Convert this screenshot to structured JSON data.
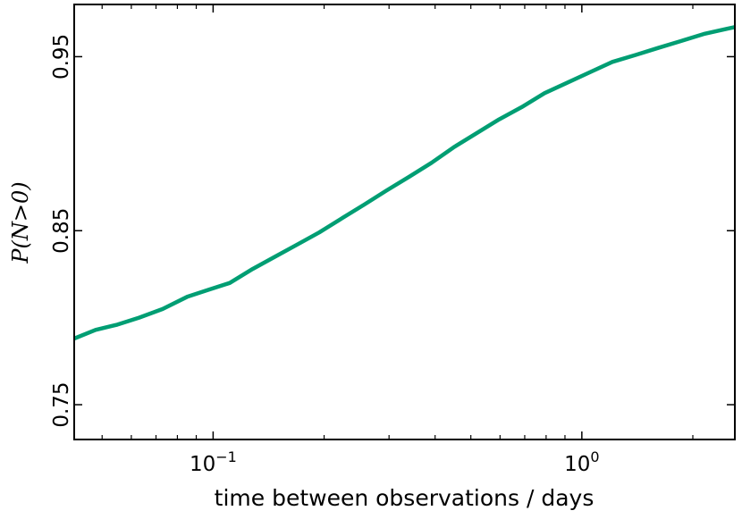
{
  "chart_data": {
    "type": "line",
    "title": "",
    "xlabel": "time between observations / days",
    "ylabel": "P(N>0)",
    "xscale": "log",
    "xlim": [
      0.042,
      2.6
    ],
    "ylim": [
      0.73,
      0.98
    ],
    "grid": false,
    "legend": "none",
    "xticks": [
      {
        "value": 0.1,
        "base": "10",
        "exp": "−1"
      },
      {
        "value": 1.0,
        "base": "10",
        "exp": "0"
      }
    ],
    "yticks": [
      {
        "value": 0.75,
        "label": "0.75"
      },
      {
        "value": 0.85,
        "label": "0.85"
      },
      {
        "value": 0.95,
        "label": "0.95"
      }
    ],
    "series": [
      {
        "color": "#009e73",
        "x": [
          0.042,
          0.048,
          0.055,
          0.063,
          0.073,
          0.085,
          0.097,
          0.111,
          0.128,
          0.147,
          0.169,
          0.194,
          0.223,
          0.257,
          0.295,
          0.34,
          0.391,
          0.45,
          0.518,
          0.597,
          0.687,
          0.792,
          0.912,
          1.05,
          1.21,
          1.4,
          1.61,
          1.86,
          2.14,
          2.47,
          2.6
        ],
        "y": [
          0.788,
          0.793,
          0.796,
          0.8,
          0.805,
          0.812,
          0.816,
          0.82,
          0.828,
          0.835,
          0.842,
          0.849,
          0.857,
          0.865,
          0.873,
          0.881,
          0.889,
          0.898,
          0.906,
          0.914,
          0.921,
          0.929,
          0.935,
          0.941,
          0.947,
          0.951,
          0.955,
          0.959,
          0.963,
          0.966,
          0.967
        ]
      }
    ]
  }
}
